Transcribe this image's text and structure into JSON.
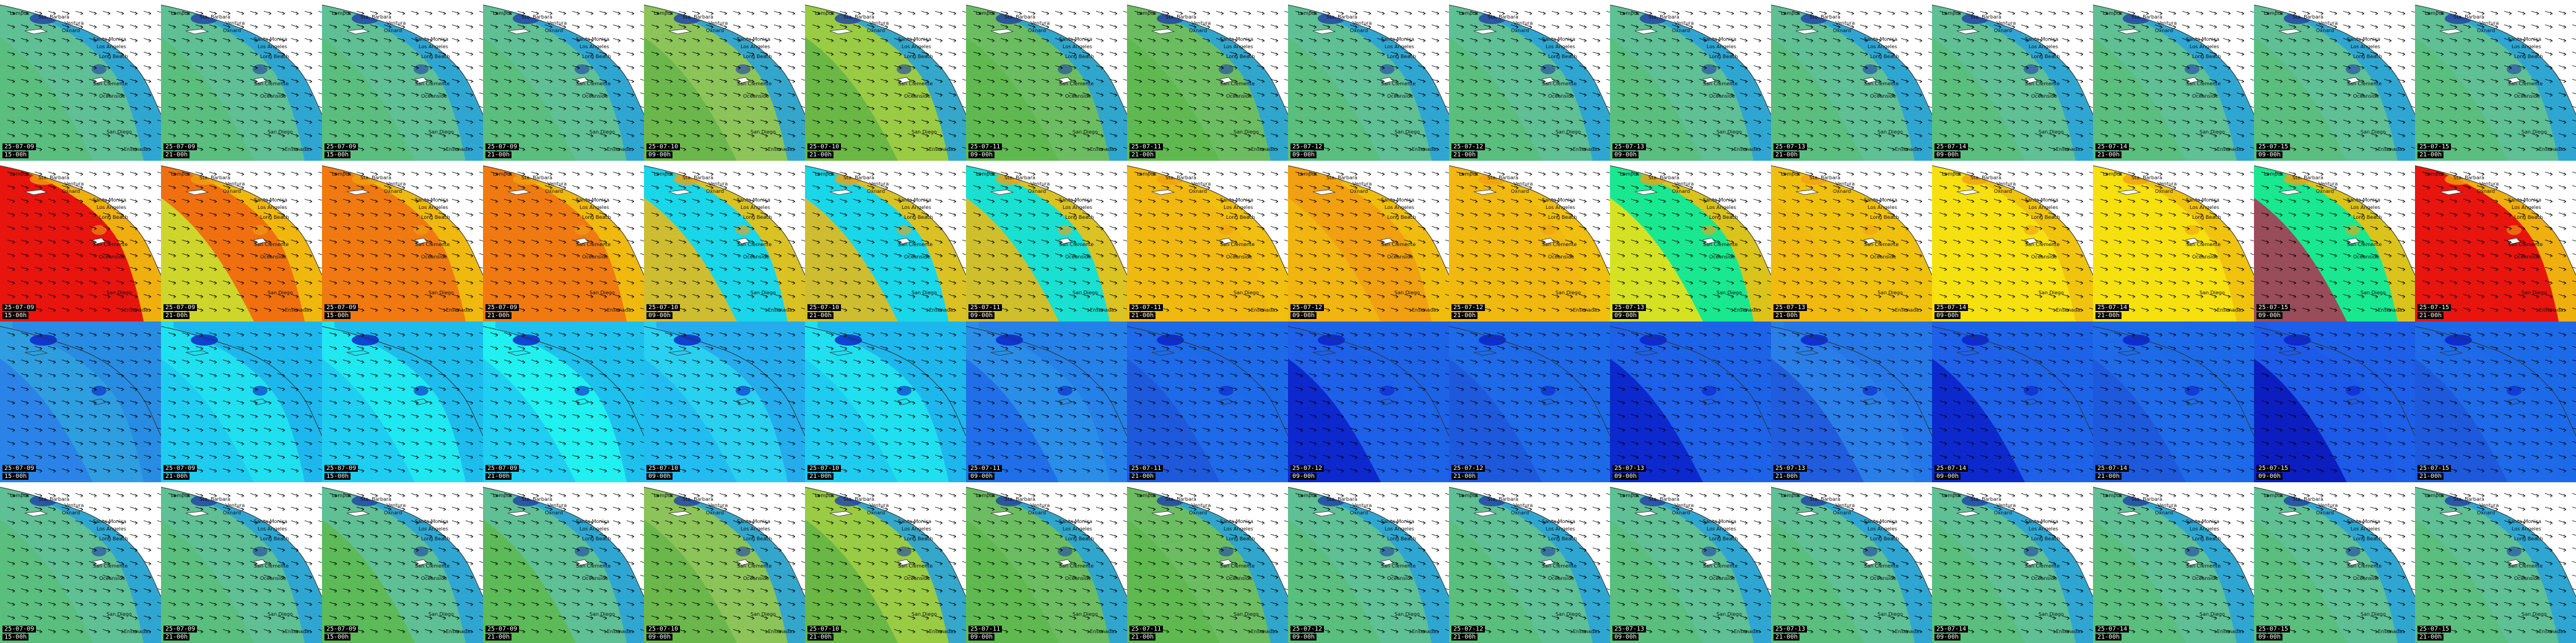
{
  "places": [
    "Lompoc",
    "Sta. Barbara",
    "Ventura",
    "Santa Monica",
    "Los Angeles",
    "Oxnard",
    "Long Beach",
    "San Clemente",
    "Oceanside",
    "San Diego",
    "Ensenada"
  ],
  "frames": [
    {
      "date": "25-07-09",
      "time": "15-00h"
    },
    {
      "date": "25-07-09",
      "time": "21-00h"
    },
    {
      "date": "25-07-09",
      "time": "15-00h"
    },
    {
      "date": "25-07-09",
      "time": "21-00h"
    },
    {
      "date": "25-07-10",
      "time": "09-00h"
    },
    {
      "date": "25-07-10",
      "time": "21-00h"
    },
    {
      "date": "25-07-11",
      "time": "09-00h"
    },
    {
      "date": "25-07-11",
      "time": "21-00h"
    },
    {
      "date": "25-07-12",
      "time": "09-00h"
    },
    {
      "date": "25-07-12",
      "time": "21-00h"
    },
    {
      "date": "25-07-13",
      "time": "09-00h"
    },
    {
      "date": "25-07-13",
      "time": "21-00h"
    },
    {
      "date": "25-07-14",
      "time": "09-00h"
    },
    {
      "date": "25-07-14",
      "time": "21-00h"
    },
    {
      "date": "25-07-15",
      "time": "09-00h"
    },
    {
      "date": "25-07-15",
      "time": "21-00h"
    }
  ],
  "rows": [
    {
      "name": "wave-height",
      "sea": [
        "#5fbf95",
        "#5fbf95",
        "#5fbf95",
        "#5fbf95",
        "#8cc45a",
        "#9acb45",
        "#6cbd62",
        "#6cbd62",
        "#5fbf95",
        "#5fbf95",
        "#5fbf95",
        "#5fbf95",
        "#5fbf95",
        "#5fbf95",
        "#5fbf95",
        "#5fbf95"
      ],
      "band": [
        "#59bd7a",
        "#59bd7a",
        "#59bd7a",
        "#59bd7a",
        "#66b54a",
        "#62b445",
        "#5db84e",
        "#5db84e",
        "#59bd7a",
        "#59bd7a",
        "#59bd7a",
        "#59bd7a",
        "#59bd7a",
        "#59bd7a",
        "#59bd7a",
        "#59bd7a"
      ],
      "coast": "#2aa3d8",
      "deep": "#1e3fa6"
    },
    {
      "name": "wave-period",
      "sea": [
        "#e8140e",
        "#f07010",
        "#f07a12",
        "#f07a12",
        "#19d6e8",
        "#19d6e8",
        "#19e0d0",
        "#f0b810",
        "#f0a010",
        "#f0b810",
        "#19e890",
        "#f0c010",
        "#f6e010",
        "#f6e010",
        "#19e890",
        "#e8140e"
      ],
      "band": [
        "#e8140e",
        "#c8e830",
        "#f07a12",
        "#f07a12",
        "#f0b810",
        "#f0b810",
        "#f0b810",
        "#f0b810",
        "#f0b810",
        "#f0b810",
        "#f6e010",
        "#f0b810",
        "#f6e010",
        "#f6e010",
        "#b03050",
        "#e8140e"
      ],
      "coast": "#f0c010",
      "deep": "#f0a010"
    },
    {
      "name": "wind-speed",
      "sea": [
        "#2f9ee0",
        "#20e0f0",
        "#20e8f0",
        "#20f0f0",
        "#2ad0f0",
        "#20e0f0",
        "#2a8ee8",
        "#1e6ae8",
        "#1e60e8",
        "#1e6ae8",
        "#1e60e8",
        "#2a7ee8",
        "#1e60e8",
        "#1e6ae8",
        "#1e5ae8",
        "#1e6ae8"
      ],
      "band": [
        "#2a7ee8",
        "#20c8f0",
        "#20c8f0",
        "#20c8f0",
        "#22b8f0",
        "#20c8f0",
        "#1e6ae8",
        "#1e56d8",
        "#0a1ec8",
        "#1e56d8",
        "#0a1ec8",
        "#1e56d8",
        "#0a20c8",
        "#1e56d8",
        "#0a14b8",
        "#1e56d8"
      ],
      "coast": "#1e6ae8",
      "deep": "#0a1ec8"
    },
    {
      "name": "swell-height",
      "sea": [
        "#5fbf95",
        "#5fbf95",
        "#5fbf95",
        "#5fbf95",
        "#8cc45a",
        "#9acb45",
        "#6cbd62",
        "#6cbd62",
        "#5fbf95",
        "#5fbf95",
        "#5fbf95",
        "#5fbf95",
        "#5fbf95",
        "#5fbf95",
        "#5fbf95",
        "#5fbf95"
      ],
      "band": [
        "#59bd7a",
        "#59bd7a",
        "#5db84e",
        "#5db84e",
        "#66b54a",
        "#62b445",
        "#5db84e",
        "#5db84e",
        "#59bd7a",
        "#59bd7a",
        "#59bd7a",
        "#59bd7a",
        "#59bd7a",
        "#59bd7a",
        "#59bd7a",
        "#59bd7a"
      ],
      "coast": "#2aa3d8",
      "deep": "#1e3fa6"
    }
  ]
}
